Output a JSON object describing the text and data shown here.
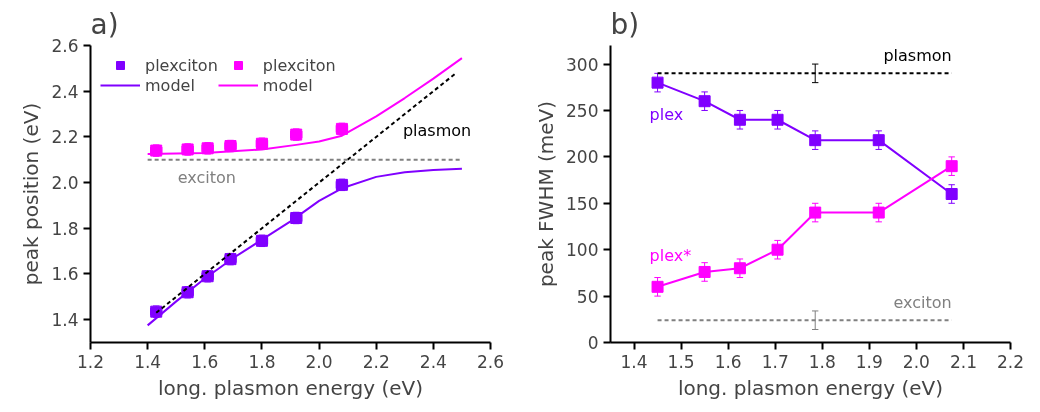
{
  "chart_data": [
    {
      "type": "scatter",
      "title": "a)",
      "xlabel": "long. plasmon energy (eV)",
      "ylabel": "peak position (eV)",
      "xlim": [
        1.2,
        2.6
      ],
      "ylim": [
        1.3,
        2.6
      ],
      "xticks": [
        {
          "value": 1.2,
          "label": "1.2"
        },
        {
          "value": 1.4,
          "label": "1.4"
        },
        {
          "value": 1.6,
          "label": "1.6"
        },
        {
          "value": 1.8,
          "label": "1.8"
        },
        {
          "value": 2.0,
          "label": "2.0"
        },
        {
          "value": 2.2,
          "label": "2.2"
        },
        {
          "value": 2.4,
          "label": "2.4"
        },
        {
          "value": 2.6,
          "label": "2.6"
        }
      ],
      "yticks": [
        {
          "value": 1.4,
          "label": "1.4"
        },
        {
          "value": 1.6,
          "label": "1.6"
        },
        {
          "value": 1.8,
          "label": "1.8"
        },
        {
          "value": 2.0,
          "label": "2.0"
        },
        {
          "value": 2.2,
          "label": "2.2"
        },
        {
          "value": 2.4,
          "label": "2.4"
        },
        {
          "value": 2.6,
          "label": "2.6"
        }
      ],
      "grid": false,
      "legend": "top left",
      "marker": "square",
      "series": [
        {
          "name": "plexciton",
          "type": "scatter",
          "color": "#8000ff",
          "x": [
            1.43,
            1.54,
            1.61,
            1.69,
            1.8,
            1.92,
            2.08
          ],
          "values": [
            1.435,
            1.52,
            1.59,
            1.665,
            1.745,
            1.845,
            1.99
          ],
          "errors": [
            0.025,
            0.025,
            0.025,
            0.025,
            0.025,
            0.025,
            0.025
          ],
          "xerrors": [
            0.02,
            0.02,
            0.02,
            0.02,
            0.02,
            0.02,
            0.02
          ]
        },
        {
          "name": "plexciton",
          "type": "scatter",
          "color": "#ff00ff",
          "x": [
            1.43,
            1.54,
            1.61,
            1.69,
            1.8,
            1.92,
            2.08
          ],
          "values": [
            2.14,
            2.145,
            2.15,
            2.16,
            2.17,
            2.21,
            2.235
          ],
          "errors": [
            0.025,
            0.025,
            0.025,
            0.025,
            0.025,
            0.025,
            0.025
          ],
          "xerrors": [
            0.02,
            0.02,
            0.02,
            0.02,
            0.02,
            0.02,
            0.02
          ]
        },
        {
          "name": "model",
          "type": "line",
          "color": "#8000ff",
          "line_style": "solid",
          "marker": "none",
          "x": [
            1.4,
            1.5,
            1.6,
            1.7,
            1.8,
            1.9,
            2.0,
            2.08,
            2.2,
            2.3,
            2.4,
            2.5
          ],
          "values": [
            1.375,
            1.48,
            1.58,
            1.67,
            1.75,
            1.83,
            1.92,
            1.975,
            2.025,
            2.045,
            2.055,
            2.06
          ]
        },
        {
          "name": "model",
          "type": "line",
          "color": "#ff00ff",
          "line_style": "solid",
          "marker": "none",
          "x": [
            1.4,
            1.6,
            1.8,
            1.92,
            2.0,
            2.08,
            2.2,
            2.3,
            2.4,
            2.5
          ],
          "values": [
            2.125,
            2.13,
            2.145,
            2.165,
            2.18,
            2.205,
            2.29,
            2.37,
            2.455,
            2.545
          ]
        },
        {
          "name": "plasmon",
          "type": "line",
          "color": "#000000",
          "line_style": "dashed",
          "marker": "none",
          "x": [
            1.43,
            2.48
          ],
          "values": [
            1.43,
            2.48
          ]
        },
        {
          "name": "exciton",
          "type": "line",
          "color": "#808080",
          "line_style": "dashed",
          "marker": "none",
          "x": [
            1.4,
            2.5
          ],
          "values": [
            2.1,
            2.1
          ]
        }
      ]
    },
    {
      "type": "line",
      "title": "b)",
      "xlabel": "long. plasmon energy (eV)",
      "ylabel": "peak FWHM (meV)",
      "xlim": [
        1.35,
        2.2
      ],
      "ylim": [
        0,
        320
      ],
      "xticks": [
        {
          "value": 1.4,
          "label": "1.4"
        },
        {
          "value": 1.5,
          "label": "1.5"
        },
        {
          "value": 1.6,
          "label": "1.6"
        },
        {
          "value": 1.7,
          "label": "1.7"
        },
        {
          "value": 1.8,
          "label": "1.8"
        },
        {
          "value": 1.9,
          "label": "1.9"
        },
        {
          "value": 2.0,
          "label": "2.0"
        },
        {
          "value": 2.1,
          "label": "2.1"
        },
        {
          "value": 2.2,
          "label": "2.2"
        }
      ],
      "yticks": [
        0,
        50,
        100,
        150,
        200,
        250,
        300
      ],
      "grid": false,
      "legend": false,
      "marker": "square",
      "series": [
        {
          "name": "plex",
          "color": "#8000ff",
          "line_style": "solid",
          "x": [
            1.45,
            1.55,
            1.625,
            1.705,
            1.785,
            1.92,
            2.075
          ],
          "values": [
            280,
            260,
            240,
            240,
            218,
            218,
            160
          ],
          "errors": [
            10,
            10,
            10,
            10,
            10,
            10,
            10
          ],
          "xerrors": [
            0.01,
            0.01,
            0.01,
            0.01,
            0.01,
            0.01,
            0.01
          ]
        },
        {
          "name": "plex*",
          "color": "#ff00ff",
          "line_style": "solid",
          "x": [
            1.45,
            1.55,
            1.625,
            1.705,
            1.785,
            1.92,
            2.075
          ],
          "values": [
            60,
            76,
            80,
            100,
            140,
            140,
            190
          ],
          "errors": [
            10,
            10,
            10,
            10,
            10,
            10,
            10
          ],
          "xerrors": [
            0.01,
            0.01,
            0.01,
            0.01,
            0.01,
            0.01,
            0.01
          ]
        },
        {
          "name": "plasmon",
          "color": "#000000",
          "line_style": "dashed",
          "marker": "none",
          "x": [
            1.45,
            1.785,
            2.075
          ],
          "values": [
            290,
            290,
            290
          ],
          "errors": [
            null,
            10,
            null
          ]
        },
        {
          "name": "exciton",
          "color": "#808080",
          "line_style": "dashed",
          "marker": "none",
          "x": [
            1.45,
            1.785,
            2.075
          ],
          "values": [
            24,
            24,
            24
          ],
          "errors": [
            null,
            10,
            null
          ]
        }
      ]
    }
  ]
}
